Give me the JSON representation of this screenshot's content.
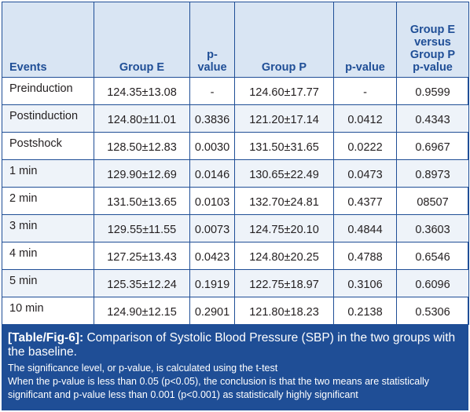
{
  "table": {
    "headers": [
      "Events",
      "Group E",
      "p-\nvalue",
      "Group P",
      "p-value",
      "Group E\nversus\nGroup P\np-value"
    ],
    "rows": [
      [
        "Preinduction",
        "124.35±13.08",
        "-",
        "124.60±17.77",
        "-",
        "0.9599"
      ],
      [
        "Postinduction",
        "124.80±11.01",
        "0.3836",
        "121.20±17.14",
        "0.0412",
        "0.4343"
      ],
      [
        "Postshock",
        "128.50±12.83",
        "0.0030",
        "131.50±31.65",
        "0.0222",
        "0.6967"
      ],
      [
        "1 min",
        "129.90±12.69",
        "0.0146",
        "130.65±22.49",
        "0.0473",
        "0.8973"
      ],
      [
        "2 min",
        "131.50±13.65",
        "0.0103",
        "132.70±24.81",
        "0.4377",
        "08507"
      ],
      [
        "3 min",
        "129.55±11.55",
        "0.0073",
        "124.75±20.10",
        "0.4844",
        "0.3603"
      ],
      [
        "4 min",
        "127.25±13.43",
        "0.0423",
        "124.80±20.25",
        "0.4788",
        "0.6546"
      ],
      [
        "5 min",
        "125.35±12.24",
        "0.1919",
        "122.75±18.97",
        "0.3106",
        "0.6096"
      ],
      [
        "10 min",
        "124.90±12.15",
        "0.2901",
        "121.80±18.23",
        "0.2138",
        "0.5306"
      ]
    ]
  },
  "caption": {
    "label": "[Table/Fig-6]:",
    "title": "Comparison of Systolic Blood Pressure (SBP) in the two groups with the baseline.",
    "notes": [
      "The significance level, or p-value, is calculated using the t-test",
      "When the p-value is less than 0.05 (p<0.05), the conclusion is that the two means are statistically significant and p-value less than 0.001 (p<0.001) as statistically highly significant"
    ]
  },
  "colors": {
    "border": "#1f4e96",
    "header_bg": "#d9e5f3",
    "header_text": "#1f4e96",
    "stripe_bg": "#eef3f9",
    "caption_bg": "#1f4e96",
    "caption_text": "#ffffff"
  }
}
